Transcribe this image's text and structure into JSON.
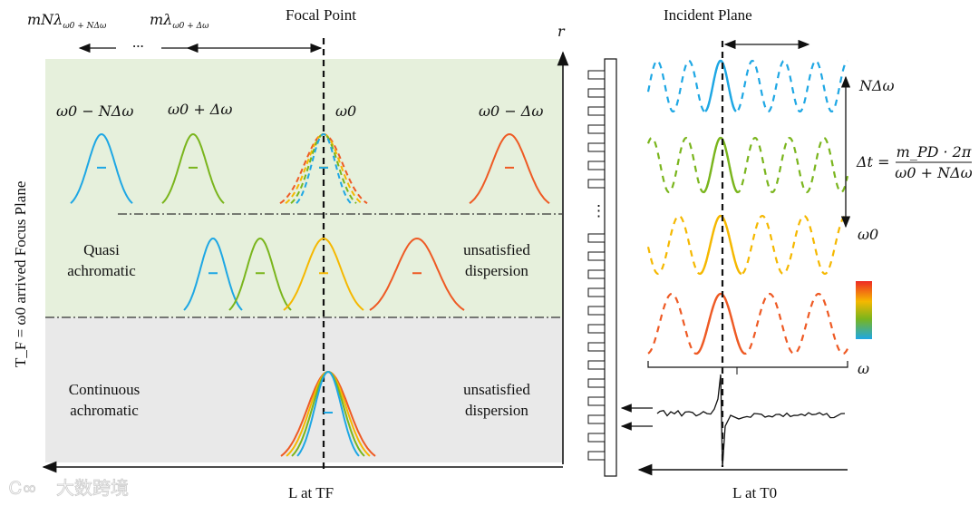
{
  "top": {
    "label_far": "mNλ",
    "label_far_sub": "ω0 + NΔω",
    "label_near": "mλ",
    "label_near_sub": "ω0 + Δω",
    "ellipsis": "...",
    "focal_point": "Focal Point",
    "incident_plane": "Incident Plane",
    "r_axis": "r"
  },
  "left_panel": {
    "y_axis_label": "T_F = ω0 arrived Focus Plane",
    "x_axis_label": "L at TF",
    "row1_labels": [
      "ω0 − NΔω",
      "ω0 + Δω",
      "ω0",
      "ω0 − Δω"
    ],
    "quasi": [
      "Quasi",
      "achromatic"
    ],
    "unsat1": [
      "unsatisfied",
      "dispersion"
    ],
    "continuous": [
      "Continuous",
      "achromatic"
    ],
    "unsat2": [
      "unsatisfied",
      "dispersion"
    ]
  },
  "right_panel": {
    "n_delta_omega": "NΔω",
    "omega0": "ω0",
    "formula_lhs": "Δt =",
    "formula_num": "m_PD · 2π",
    "formula_den": "ω0 + NΔω",
    "omega_axis": "ω",
    "x_axis_label": "L at T0",
    "dots": "⋮"
  },
  "watermark": "大数跨境",
  "colors": {
    "green_bg": "#e6f0dc",
    "grey_bg": "#e9e9e9",
    "blue": "#1ea7e4",
    "green": "#7ab51d",
    "yellow": "#f5b800",
    "orange": "#ee5a24"
  }
}
